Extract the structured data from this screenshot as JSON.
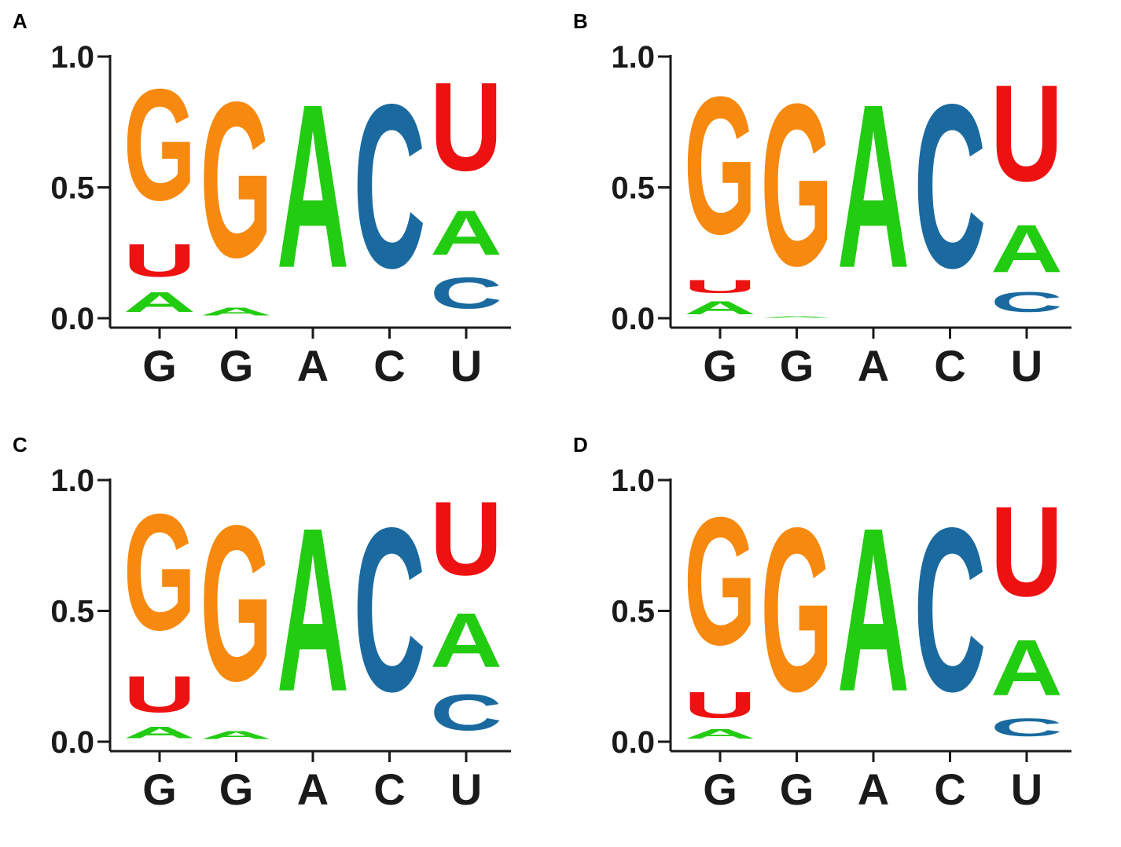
{
  "colors": {
    "A": "#22cc11",
    "C": "#1a6aa0",
    "G": "#f7890f",
    "U": "#ee1111",
    "axis": "#1a1a1a"
  },
  "chart_data": [
    {
      "type": "sequence-logo",
      "panel_label": "A",
      "ylim": [
        0,
        1
      ],
      "yticks": [
        "0.0",
        "0.5",
        "1.0"
      ],
      "positions": [
        "G",
        "G",
        "A",
        "C",
        "U"
      ],
      "stacks": [
        [
          {
            "letter": "A",
            "height": 0.12
          },
          {
            "letter": "U",
            "height": 0.2
          },
          {
            "letter": "G",
            "height": 0.68
          }
        ],
        [
          {
            "letter": "A",
            "height": 0.05
          },
          {
            "letter": "G",
            "height": 0.95
          }
        ],
        [
          {
            "letter": "A",
            "height": 1.0
          }
        ],
        [
          {
            "letter": "C",
            "height": 1.0
          }
        ],
        [
          {
            "letter": "C",
            "height": 0.19
          },
          {
            "letter": "A",
            "height": 0.27
          },
          {
            "letter": "U",
            "height": 0.54
          }
        ]
      ]
    },
    {
      "type": "sequence-logo",
      "panel_label": "B",
      "ylim": [
        0,
        1
      ],
      "yticks": [
        "0.0",
        "0.5",
        "1.0"
      ],
      "positions": [
        "G",
        "G",
        "A",
        "C",
        "U"
      ],
      "stacks": [
        [
          {
            "letter": "A",
            "height": 0.08
          },
          {
            "letter": "U",
            "height": 0.08
          },
          {
            "letter": "G",
            "height": 0.84
          }
        ],
        [
          {
            "letter": "A",
            "height": 0.01
          },
          {
            "letter": "G",
            "height": 0.99
          }
        ],
        [
          {
            "letter": "A",
            "height": 1.0
          }
        ],
        [
          {
            "letter": "C",
            "height": 1.0
          }
        ],
        [
          {
            "letter": "C",
            "height": 0.12
          },
          {
            "letter": "A",
            "height": 0.29
          },
          {
            "letter": "U",
            "height": 0.59
          }
        ]
      ]
    },
    {
      "type": "sequence-logo",
      "panel_label": "C",
      "ylim": [
        0,
        1
      ],
      "yticks": [
        "0.0",
        "0.5",
        "1.0"
      ],
      "positions": [
        "G",
        "G",
        "A",
        "C",
        "U"
      ],
      "stacks": [
        [
          {
            "letter": "A",
            "height": 0.07
          },
          {
            "letter": "U",
            "height": 0.22
          },
          {
            "letter": "G",
            "height": 0.71
          }
        ],
        [
          {
            "letter": "A",
            "height": 0.05
          },
          {
            "letter": "G",
            "height": 0.95
          }
        ],
        [
          {
            "letter": "A",
            "height": 1.0
          }
        ],
        [
          {
            "letter": "C",
            "height": 1.0
          }
        ],
        [
          {
            "letter": "C",
            "height": 0.22
          },
          {
            "letter": "A",
            "height": 0.33
          },
          {
            "letter": "U",
            "height": 0.45
          }
        ]
      ]
    },
    {
      "type": "sequence-logo",
      "panel_label": "D",
      "ylim": [
        0,
        1
      ],
      "yticks": [
        "0.0",
        "0.5",
        "1.0"
      ],
      "positions": [
        "G",
        "G",
        "A",
        "C",
        "U"
      ],
      "stacks": [
        [
          {
            "letter": "A",
            "height": 0.06
          },
          {
            "letter": "U",
            "height": 0.16
          },
          {
            "letter": "G",
            "height": 0.78
          }
        ],
        [
          {
            "letter": "G",
            "height": 1.0
          }
        ],
        [
          {
            "letter": "A",
            "height": 1.0
          }
        ],
        [
          {
            "letter": "C",
            "height": 1.0
          }
        ],
        [
          {
            "letter": "C",
            "height": 0.11
          },
          {
            "letter": "A",
            "height": 0.34
          },
          {
            "letter": "U",
            "height": 0.55
          }
        ]
      ]
    }
  ]
}
